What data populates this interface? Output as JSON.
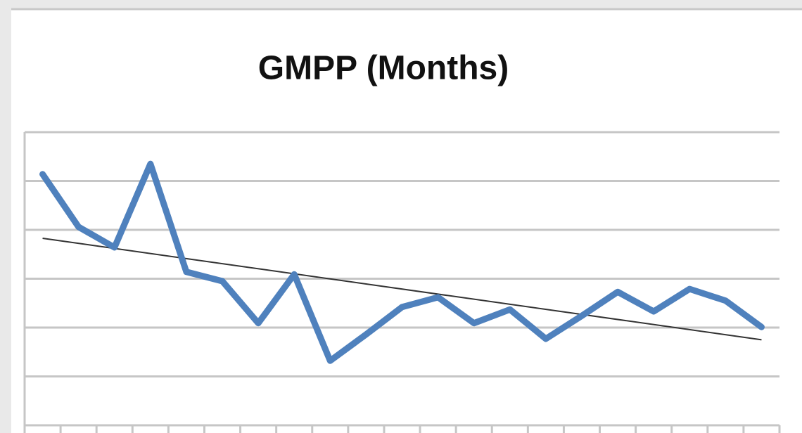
{
  "chart_data": {
    "type": "line",
    "title": "GMPP (Months)",
    "categories": [
      null,
      null,
      null,
      null,
      null,
      null,
      null,
      null,
      null,
      null,
      null,
      null,
      null,
      null,
      null,
      null,
      null,
      null,
      null,
      null,
      null
    ],
    "series": [
      {
        "color": "#4f81bd",
        "values": [
          5.14,
          4.06,
          3.64,
          5.35,
          3.14,
          2.95,
          2.09,
          3.09,
          1.32,
          1.86,
          2.42,
          2.62,
          2.09,
          2.37,
          1.77,
          2.24,
          2.73,
          2.33,
          2.79,
          2.55,
          2.01
        ]
      }
    ],
    "ylim": [
      0,
      6
    ],
    "yticks": [
      0,
      1,
      2,
      3,
      4,
      5,
      6
    ],
    "grid": true,
    "trendline": true,
    "trendline_color": "#333333"
  }
}
